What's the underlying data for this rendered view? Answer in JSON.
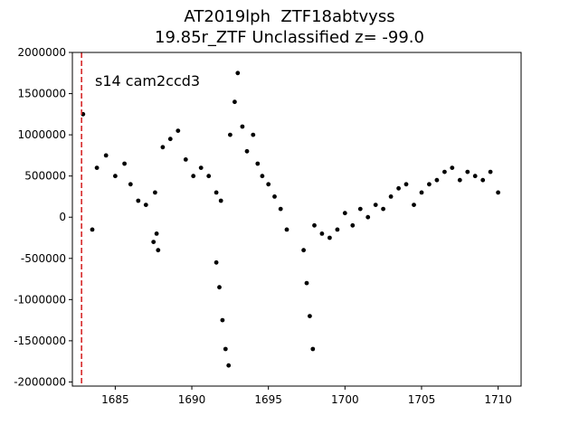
{
  "chart_data": {
    "type": "scatter",
    "title_lines": [
      "AT2019lph  ZTF18abtvyss",
      "19.85r_ZTF Unclassified z= -99.0"
    ],
    "annotation": "s14 cam2ccd3",
    "xlim": [
      1682.2,
      1711.5
    ],
    "ylim": [
      -2050000,
      2000000
    ],
    "xticks": [
      1685,
      1690,
      1695,
      1700,
      1705,
      1710
    ],
    "yticks": [
      -2000000,
      -1500000,
      -1000000,
      -500000,
      0,
      500000,
      1000000,
      1500000,
      2000000
    ],
    "vline": {
      "x": 1682.8,
      "color": "#d62728",
      "style": "dashed"
    },
    "marker_color": "#000000",
    "segments": [
      {
        "x": [
          1682.9,
          1683.5,
          1683.8,
          1684.4,
          1685.0,
          1685.6,
          1686.0,
          1686.5,
          1687.0,
          1687.6,
          1688.1,
          1688.6,
          1689.1,
          1689.6,
          1690.1,
          1690.6,
          1691.1,
          1691.6,
          1691.9
        ],
        "y": [
          1250000,
          -150000,
          600000,
          750000,
          500000,
          650000,
          400000,
          200000,
          150000,
          300000,
          850000,
          950000,
          1050000,
          700000,
          500000,
          600000,
          500000,
          300000,
          200000
        ]
      },
      {
        "x": [
          1687.5,
          1687.7,
          1687.8
        ],
        "y": [
          -300000,
          -200000,
          -400000
        ]
      },
      {
        "x": [
          1691.6,
          1691.8,
          1692.0,
          1692.2,
          1692.4
        ],
        "y": [
          -550000,
          -850000,
          -1250000,
          -1600000,
          -1800000
        ]
      },
      {
        "x": [
          1692.5,
          1692.8,
          1693.0,
          1693.3,
          1693.6,
          1694.0,
          1694.3,
          1694.6,
          1695.0,
          1695.4,
          1695.8,
          1696.2
        ],
        "y": [
          1000000,
          1400000,
          1750000,
          1100000,
          800000,
          1000000,
          650000,
          500000,
          400000,
          250000,
          100000,
          -150000
        ]
      },
      {
        "x": [
          1697.3,
          1697.5,
          1697.7,
          1697.9
        ],
        "y": [
          -400000,
          -800000,
          -1200000,
          -1600000
        ]
      },
      {
        "x": [
          1698.0,
          1698.5,
          1699.0,
          1699.5,
          1700.0,
          1700.5,
          1701.0,
          1701.5,
          1702.0,
          1702.5,
          1703.0,
          1703.5,
          1704.0,
          1704.5,
          1705.0,
          1705.5,
          1706.0,
          1706.5,
          1707.0,
          1707.5,
          1708.0,
          1708.5,
          1709.0,
          1709.5,
          1710.0
        ],
        "y": [
          -100000,
          -200000,
          -250000,
          -150000,
          50000,
          -100000,
          100000,
          0,
          150000,
          100000,
          250000,
          350000,
          400000,
          150000,
          300000,
          400000,
          450000,
          550000,
          600000,
          450000,
          550000,
          500000,
          450000,
          550000,
          300000
        ]
      }
    ]
  }
}
